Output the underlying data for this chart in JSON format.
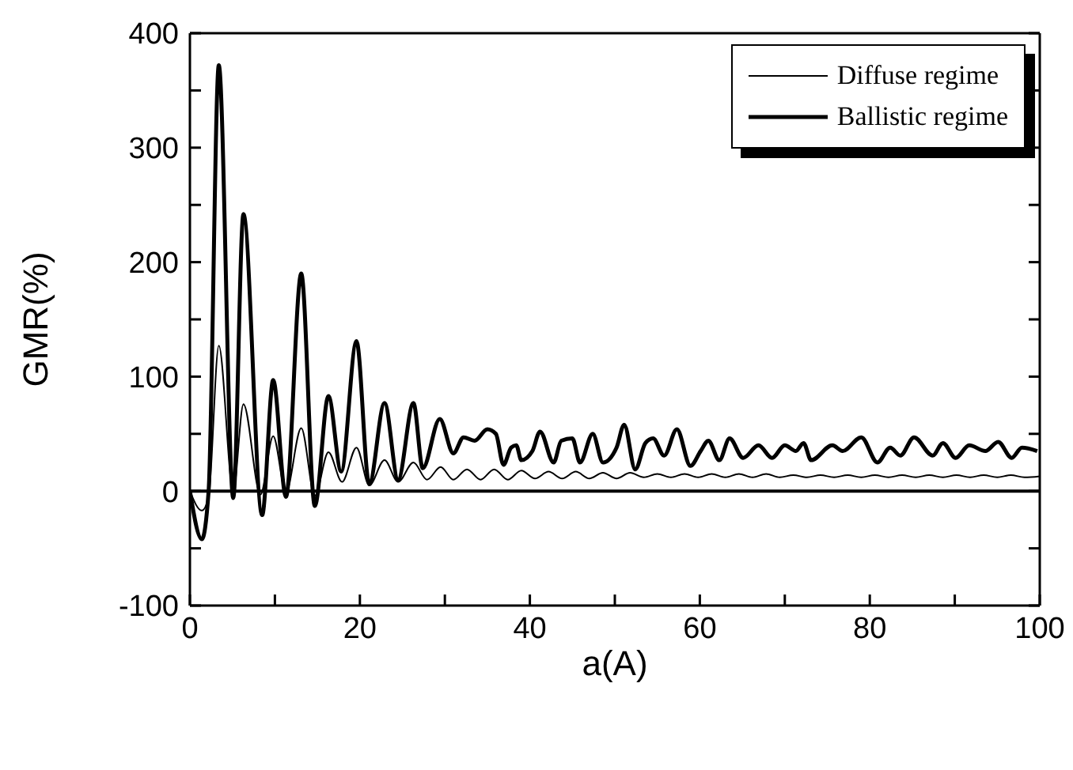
{
  "chart_data": {
    "type": "line",
    "xlabel": "a(A)",
    "ylabel": "GMR(%)",
    "xlim": [
      0,
      100
    ],
    "ylim": [
      -100,
      400
    ],
    "xticks": [
      0,
      {
        "value": 10,
        "label": null
      },
      20,
      {
        "value": 30,
        "label": null
      },
      40,
      {
        "value": 50,
        "label": null
      },
      60,
      {
        "value": 70,
        "label": null
      },
      80,
      {
        "value": 90,
        "label": null
      },
      100
    ],
    "yticks": [
      -100,
      {
        "value": -50,
        "label": null
      },
      0,
      {
        "value": 50,
        "label": null
      },
      100,
      {
        "value": 150,
        "label": null
      },
      200,
      {
        "value": 250,
        "label": null
      },
      300,
      {
        "value": 350,
        "label": null
      },
      400
    ],
    "legend": "top right",
    "marker": "none",
    "line_style": "solid",
    "ref_lines": [
      {
        "axis": "y",
        "value": 0,
        "color": "#000000"
      }
    ],
    "series": [
      {
        "name": "Diffuse regime",
        "color": "#000000",
        "x": [
          0,
          1.4,
          2.2,
          3.4,
          5.1,
          6.3,
          8.3,
          9.8,
          11.3,
          13.1,
          14.7,
          16.3,
          17.9,
          19.6,
          21.1,
          22.9,
          24.5,
          26.3,
          27.9,
          29.5,
          31,
          32.6,
          34.2,
          35.8,
          37.4,
          39,
          40.6,
          42.2,
          43.8,
          45.4,
          47,
          48.6,
          50.2,
          51.8,
          53.4,
          55,
          56.6,
          58.2,
          59.8,
          61.4,
          63,
          64.6,
          66.2,
          67.8,
          69.4,
          71,
          72.6,
          74.2,
          75.8,
          77.4,
          79,
          80.6,
          82.2,
          83.8,
          85.4,
          87,
          88.6,
          90.2,
          91.8,
          93.4,
          95,
          96.6,
          98.2,
          100
        ],
        "values": [
          0,
          -17,
          -5,
          127,
          0,
          76,
          -3,
          48,
          -1,
          55,
          -4,
          34,
          8,
          38,
          5,
          27,
          8,
          25,
          10,
          21,
          10,
          19,
          10,
          19,
          10,
          18,
          11,
          17,
          11,
          17,
          11,
          16,
          11,
          16,
          12,
          15,
          12,
          15,
          12,
          15,
          12,
          15,
          12,
          15,
          12,
          14,
          12,
          14,
          12,
          14,
          12,
          14,
          12,
          14,
          12,
          14,
          12,
          14,
          12,
          14,
          12,
          14,
          12,
          13
        ]
      },
      {
        "name": "Ballistic regime",
        "color": "#000000",
        "x": [
          0,
          1.4,
          2.2,
          3.4,
          5.1,
          6.3,
          8.5,
          9.8,
          11.3,
          13.1,
          14.7,
          16.3,
          17.8,
          19.6,
          21.1,
          22.9,
          24.5,
          26.3,
          27.4,
          29.4,
          31,
          32.2,
          33.5,
          35,
          36,
          36.9,
          37.8,
          38.4,
          39,
          40.3,
          41.2,
          42.8,
          43.7,
          45,
          45.9,
          47.4,
          48.6,
          50.2,
          51.1,
          52.4,
          53.6,
          54.5,
          55.8,
          57.3,
          58.9,
          60.1,
          61,
          62.3,
          63.5,
          65.1,
          66.9,
          68.5,
          70,
          71.3,
          72.2,
          73.1,
          75.6,
          76.8,
          79,
          80.9,
          82.4,
          83.6,
          85.2,
          87.4,
          88.6,
          90.1,
          91.7,
          93.6,
          95.1,
          96.7,
          97.9,
          99.7
        ],
        "values": [
          0,
          -42,
          0,
          372,
          -6,
          242,
          -21,
          97,
          -5,
          190,
          -13,
          83,
          17,
          131,
          6,
          77,
          10,
          77,
          20,
          63,
          33,
          47,
          44,
          54,
          50,
          23,
          38,
          40,
          27,
          35,
          52,
          25,
          44,
          46,
          25,
          50,
          25,
          38,
          58,
          19,
          42,
          46,
          31,
          54,
          22,
          35,
          44,
          27,
          46,
          29,
          40,
          29,
          40,
          35,
          42,
          27,
          40,
          35,
          47,
          25,
          38,
          31,
          47,
          31,
          42,
          29,
          40,
          35,
          43,
          29,
          38,
          35
        ]
      }
    ]
  }
}
